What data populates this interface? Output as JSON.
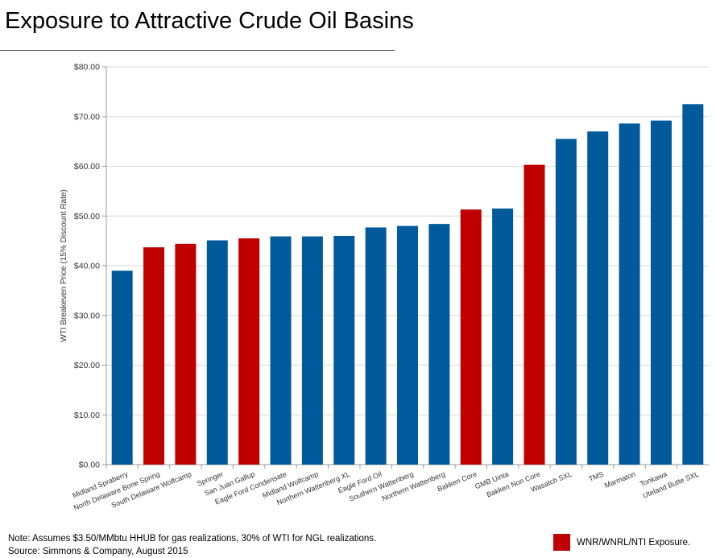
{
  "title": "Exposure to Attractive Crude Oil Basins",
  "colors": {
    "exposure": "#c00000",
    "other": "#005a9c",
    "grid": "#d9d9d9",
    "axis": "#999999"
  },
  "chart_data": {
    "type": "bar",
    "ylabel": "WTI Breakeven Price (15% Discount Rate)",
    "xlabel": "",
    "ylim": [
      0,
      80
    ],
    "yticks": [
      0,
      10,
      20,
      30,
      40,
      50,
      60,
      70,
      80
    ],
    "ytick_labels": [
      "$0.00",
      "$10.00",
      "$20.00",
      "$30.00",
      "$40.00",
      "$50.00",
      "$60.00",
      "$70.00",
      "$80.00"
    ],
    "grid": true,
    "categories": [
      "Midland Spraberry",
      "North Delaware Bone Spring",
      "South Delaware Wolfcamp",
      "Springer",
      "San Juan Gallup",
      "Eagle Ford Condensate",
      "Midland Wolfcamp",
      "Northern Wattenberg XL",
      "Eagle Ford Oil",
      "Southern Wattenberg",
      "Northern Wattenberg",
      "Bakken Core",
      "GMB Uinta",
      "Bakken Non Core",
      "Wasatch SXL",
      "TMS",
      "Marmaton",
      "Tonkawa",
      "Uteland Butte SXL"
    ],
    "values": [
      39.0,
      43.7,
      44.4,
      45.1,
      45.5,
      45.9,
      45.9,
      46.0,
      47.7,
      48.0,
      48.4,
      51.3,
      51.5,
      60.3,
      65.5,
      67.0,
      68.6,
      69.2,
      72.5
    ],
    "exposure": [
      false,
      true,
      true,
      false,
      true,
      false,
      false,
      false,
      false,
      false,
      false,
      true,
      false,
      true,
      false,
      false,
      false,
      false,
      false
    ],
    "legend": {
      "label": "WNR/WNRL/NTI Exposure.",
      "position": "bottom-right"
    }
  },
  "footnotes": {
    "note": "Note: Assumes $3.50/MMbtu HHUB for gas realizations, 30% of WTI for NGL realizations.",
    "source": "Source: Simmons & Company, August 2015"
  }
}
